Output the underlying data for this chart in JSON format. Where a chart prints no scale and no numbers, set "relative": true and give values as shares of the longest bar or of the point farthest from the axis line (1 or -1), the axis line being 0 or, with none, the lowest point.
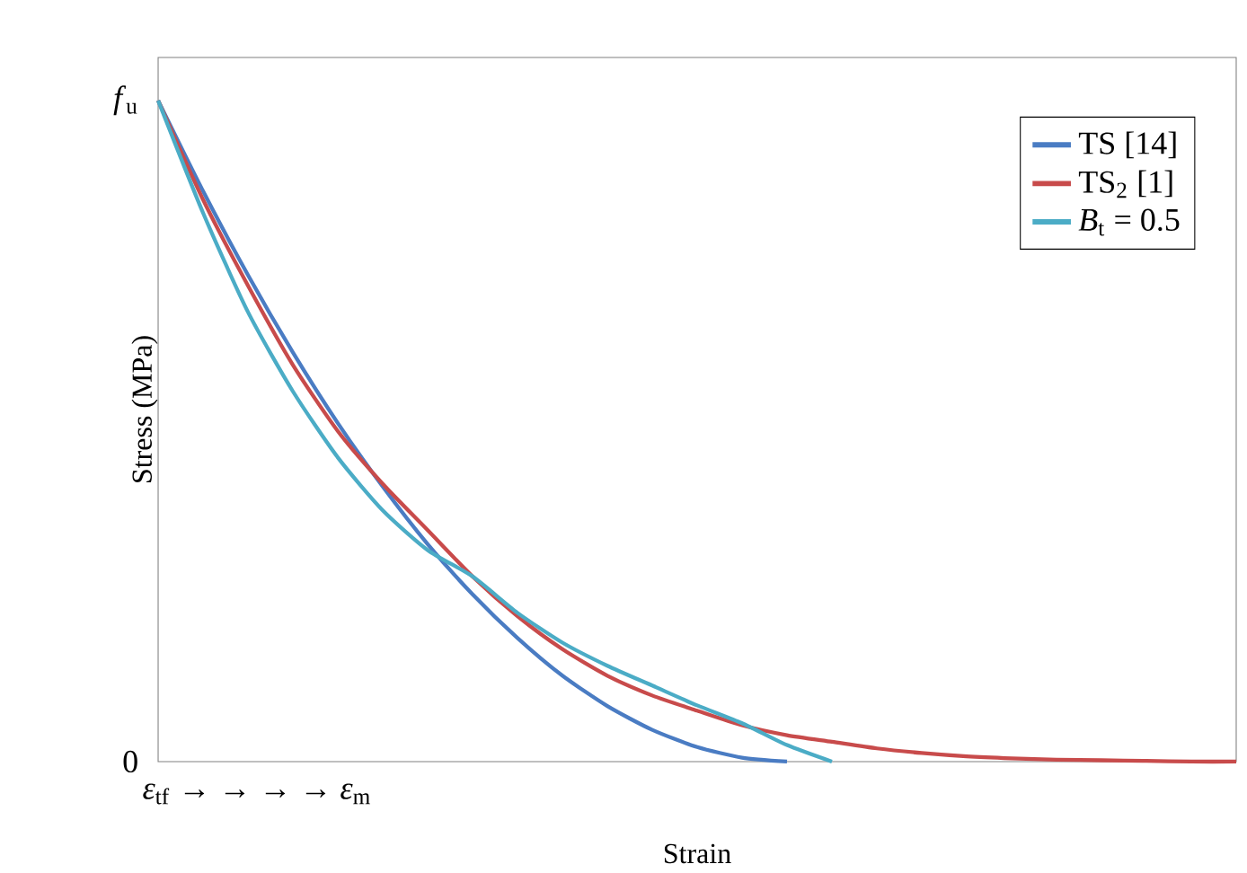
{
  "chart_data": {
    "type": "line",
    "xlabel": "Strain",
    "ylabel": "Stress (MPa)",
    "categories": [
      null,
      null,
      null,
      null,
      null,
      null,
      null,
      null,
      null,
      null,
      null,
      null,
      null,
      null,
      null,
      null,
      null,
      null,
      null,
      null,
      null,
      null,
      null,
      null,
      null
    ],
    "relative": true,
    "series": [
      {
        "name": "TS [14]",
        "color": "#4a7cc3",
        "values": [
          1,
          0.863,
          0.736,
          0.619,
          0.512,
          0.416,
          0.329,
          0.253,
          0.187,
          0.13,
          0.084,
          0.048,
          0.022,
          0.006,
          0,
          null,
          null,
          null,
          null,
          null,
          null,
          null,
          null,
          null,
          null
        ]
      },
      {
        "name": "TS$_{2}$ [1]",
        "color": "#c84b4b",
        "values": [
          1,
          0.85,
          0.72,
          0.6,
          0.5,
          0.42,
          0.35,
          0.28,
          0.22,
          0.17,
          0.13,
          0.1,
          0.077,
          0.055,
          0.04,
          0.03,
          0.02,
          0.013,
          0.008,
          0.005,
          0.003,
          0.002,
          0.001,
          0,
          0
        ]
      },
      {
        "name": "*B*$_{t}$ = 0.5",
        "color": "#4bacc6",
        "values": [
          1,
          0.83,
          0.68,
          0.56,
          0.46,
          0.38,
          0.32,
          0.28,
          0.225,
          0.18,
          0.145,
          0.115,
          0.085,
          0.058,
          0.025,
          0,
          null,
          null,
          null,
          null,
          null,
          null,
          null,
          null,
          null
        ]
      }
    ],
    "annotations": [
      "*ε*$_{tf}$ → → → → *ε*$_{m}$",
      "0",
      "*f*$_{u}$"
    ],
    "legend": "top right",
    "grid": false,
    "marker": "none",
    "line_style": "solid"
  }
}
